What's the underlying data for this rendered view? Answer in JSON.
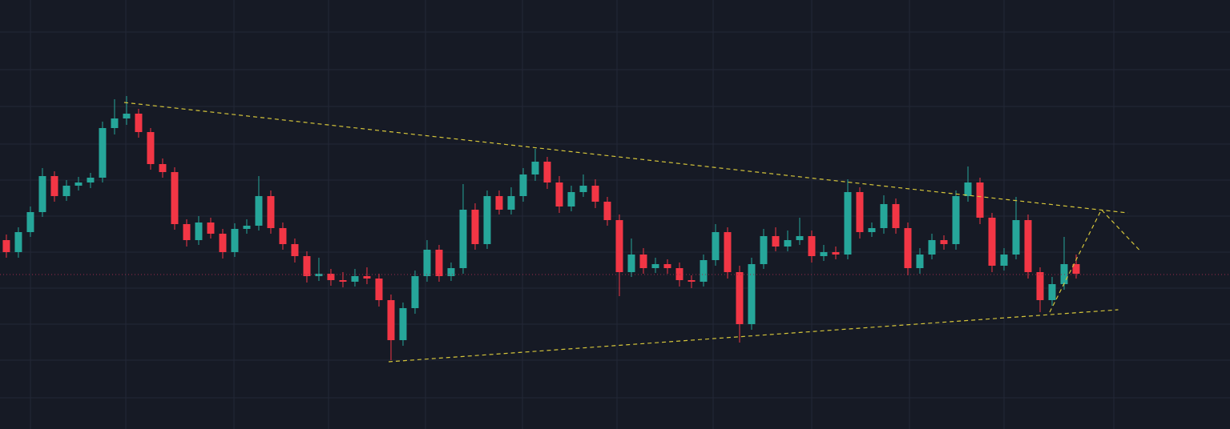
{
  "chart_data": {
    "type": "candlestick",
    "xlim": [
      -0.53,
      101.8
    ],
    "ylim": [
      0,
      536
    ],
    "grid": true,
    "up_color": "#26a69a",
    "down_color": "#f23645",
    "open": [
      236,
      221,
      246,
      271,
      316,
      291,
      304,
      308,
      314,
      376,
      388,
      394,
      371,
      331,
      321,
      256,
      236,
      258,
      244,
      221,
      250,
      254,
      291,
      251,
      231,
      216,
      191,
      194,
      186,
      184,
      191,
      188,
      161,
      111,
      151,
      191,
      224,
      191,
      201,
      274,
      231,
      291,
      274,
      291,
      318,
      334,
      308,
      278,
      296,
      304,
      284,
      261,
      196,
      218,
      201,
      206,
      201,
      186,
      184,
      211,
      246,
      196,
      131,
      206,
      241,
      228,
      236,
      241,
      216,
      221,
      218,
      296,
      246,
      251,
      281,
      251,
      201,
      218,
      236,
      231,
      291,
      308,
      264,
      204,
      218,
      261,
      196,
      161,
      181,
      206
    ],
    "high": [
      243,
      252,
      278,
      326,
      322,
      311,
      315,
      320,
      384,
      412,
      416,
      400,
      376,
      338,
      327,
      262,
      266,
      264,
      250,
      257,
      262,
      316,
      298,
      258,
      238,
      222,
      214,
      200,
      196,
      200,
      202,
      194,
      168,
      158,
      198,
      236,
      230,
      208,
      306,
      282,
      298,
      298,
      302,
      326,
      350,
      340,
      316,
      304,
      318,
      312,
      290,
      268,
      238,
      226,
      214,
      212,
      208,
      192,
      218,
      256,
      252,
      204,
      214,
      250,
      252,
      248,
      264,
      248,
      230,
      228,
      312,
      302,
      258,
      292,
      288,
      258,
      226,
      244,
      242,
      298,
      328,
      314,
      270,
      226,
      290,
      268,
      202,
      190,
      240,
      218
    ],
    "low": [
      214,
      214,
      240,
      265,
      284,
      285,
      298,
      301,
      308,
      368,
      380,
      364,
      324,
      314,
      249,
      228,
      230,
      238,
      213,
      215,
      244,
      248,
      244,
      224,
      208,
      183,
      185,
      179,
      177,
      178,
      181,
      153,
      86,
      104,
      144,
      184,
      184,
      185,
      194,
      224,
      225,
      268,
      268,
      284,
      310,
      300,
      270,
      272,
      290,
      276,
      254,
      166,
      190,
      194,
      195,
      194,
      178,
      176,
      178,
      204,
      188,
      108,
      124,
      200,
      222,
      222,
      230,
      208,
      210,
      212,
      212,
      238,
      240,
      244,
      244,
      192,
      194,
      212,
      224,
      224,
      284,
      256,
      196,
      198,
      212,
      188,
      146,
      154,
      174,
      188
    ],
    "close": [
      221,
      246,
      271,
      316,
      291,
      304,
      308,
      314,
      376,
      388,
      394,
      371,
      331,
      321,
      256,
      236,
      258,
      244,
      221,
      250,
      254,
      291,
      251,
      231,
      216,
      191,
      194,
      186,
      184,
      191,
      188,
      161,
      111,
      151,
      191,
      224,
      191,
      201,
      274,
      231,
      291,
      274,
      291,
      318,
      334,
      308,
      278,
      296,
      304,
      284,
      261,
      196,
      218,
      201,
      206,
      201,
      186,
      184,
      211,
      246,
      196,
      131,
      206,
      241,
      228,
      236,
      241,
      216,
      221,
      218,
      296,
      246,
      251,
      281,
      251,
      201,
      218,
      236,
      231,
      291,
      308,
      264,
      204,
      218,
      261,
      196,
      161,
      181,
      206,
      194
    ],
    "hline": {
      "value": 193,
      "color": "#9c2a4a"
    },
    "trendlines": [
      {
        "x": [
          9.8,
          93.3
        ],
        "y": [
          408,
          270
        ],
        "color": "#d4c43a"
      },
      {
        "x": [
          31.8,
          92.5
        ],
        "y": [
          84,
          149
        ],
        "color": "#d4c43a"
      },
      {
        "x": [
          86.8,
          91.1,
          94.3
        ],
        "y": [
          146,
          274,
          223
        ],
        "color": "#d4c43a"
      }
    ]
  }
}
